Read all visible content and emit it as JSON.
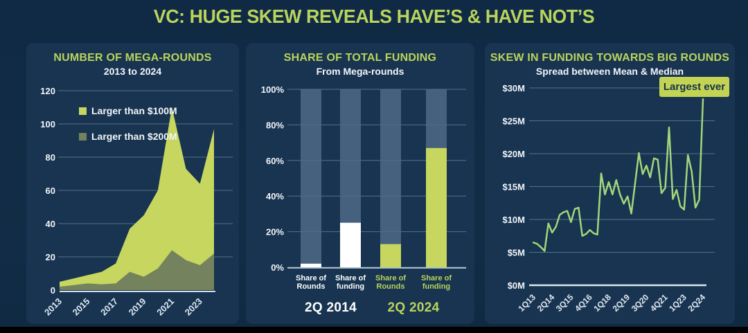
{
  "page_title": "VC: HUGE SKEW REVEALS HAVE’S & HAVE NOT’S",
  "colors": {
    "background": "#122c47",
    "card": "#183450",
    "heading_green": "#b9d45c",
    "white_text": "#f2f6fa",
    "light_green_series": "#c6d65f",
    "olive_green_series": "#74835e",
    "gray_bar": "#4f6a86",
    "white_bar": "#ffffff",
    "line_green": "#a3d67c",
    "annotation_bg": "#c3d454",
    "annotation_text": "#14304e",
    "gridline": "rgba(170,198,220,0.42)"
  },
  "chart_data": [
    {
      "type": "area",
      "title": "NUMBER OF MEGA-ROUNDS",
      "subtitle": "2013 to 2024",
      "x": [
        2013,
        2014,
        2015,
        2016,
        2017,
        2018,
        2019,
        2020,
        2021,
        2022,
        2023,
        2024
      ],
      "x_tick_labels": [
        "2013",
        "2015",
        "2017",
        "2019",
        "2021",
        "2023"
      ],
      "ylim": [
        0,
        120
      ],
      "yticks": [
        0,
        20,
        40,
        60,
        80,
        100,
        120
      ],
      "grid": true,
      "legend_position": "upper-left-inside",
      "series": [
        {
          "name": "Larger than $100M",
          "color": "#c6d65f",
          "values": [
            5,
            7,
            9,
            11,
            16,
            37,
            45,
            60,
            110,
            73,
            64,
            97
          ]
        },
        {
          "name": "Larger than $200M",
          "color": "#74835e",
          "values": [
            2,
            3,
            4,
            3.5,
            4,
            11,
            8,
            13,
            24,
            18,
            15,
            22
          ]
        }
      ]
    },
    {
      "type": "bar",
      "title": "SHARE OF TOTAL FUNDING",
      "subtitle": "From Mega-rounds",
      "categories": [
        {
          "line1": "Share of",
          "line2": "Rounds",
          "group": 0
        },
        {
          "line1": "Share of",
          "line2": "funding",
          "group": 0
        },
        {
          "line1": "Share of",
          "line2": "Rounds",
          "group": 1
        },
        {
          "line1": "Share of",
          "line2": "funding",
          "group": 1
        }
      ],
      "groups": [
        {
          "label": "2Q 2014",
          "color": "#ffffff"
        },
        {
          "label": "2Q 2024",
          "color": "#b9d45c"
        }
      ],
      "values": [
        2,
        25,
        13,
        67
      ],
      "bar_colors": [
        "#ffffff",
        "#ffffff",
        "#c6d65f",
        "#c6d65f"
      ],
      "background_bar_value": 100,
      "ylim": [
        0,
        100
      ],
      "ytick_labels": [
        "0%",
        "20%",
        "40%",
        "60%",
        "80%",
        "100%"
      ],
      "grid": true
    },
    {
      "type": "line",
      "title": "SKEW IN FUNDING TOWARDS BIG ROUNDS",
      "subtitle": "Spread between Mean & Median",
      "x_tick_labels": [
        "1Q13",
        "2Q14",
        "3Q15",
        "4Q16",
        "1Q18",
        "2Q19",
        "3Q20",
        "4Q21",
        "1Q23",
        "2Q24"
      ],
      "x_tick_every": 5,
      "ylim": [
        0,
        30
      ],
      "ytick_labels": [
        "$0M",
        "$5M",
        "$10M",
        "$15M",
        "$20M",
        "$25M",
        "$30M"
      ],
      "grid": true,
      "annotation": "Largest ever",
      "values_millions": [
        6.5,
        6.3,
        5.8,
        5.2,
        9.4,
        8.0,
        8.9,
        10.7,
        11.1,
        11.3,
        9.6,
        11.6,
        11.8,
        7.5,
        7.8,
        8.4,
        7.9,
        7.7,
        17.0,
        13.8,
        15.7,
        13.8,
        16.0,
        13.8,
        12.4,
        13.5,
        10.9,
        15.5,
        20.1,
        16.9,
        18.2,
        16.4,
        19.3,
        19.1,
        14.0,
        14.8,
        24.0,
        13.1,
        14.5,
        12.0,
        11.5,
        19.8,
        17.3,
        11.8,
        13.0,
        28.3
      ]
    }
  ]
}
